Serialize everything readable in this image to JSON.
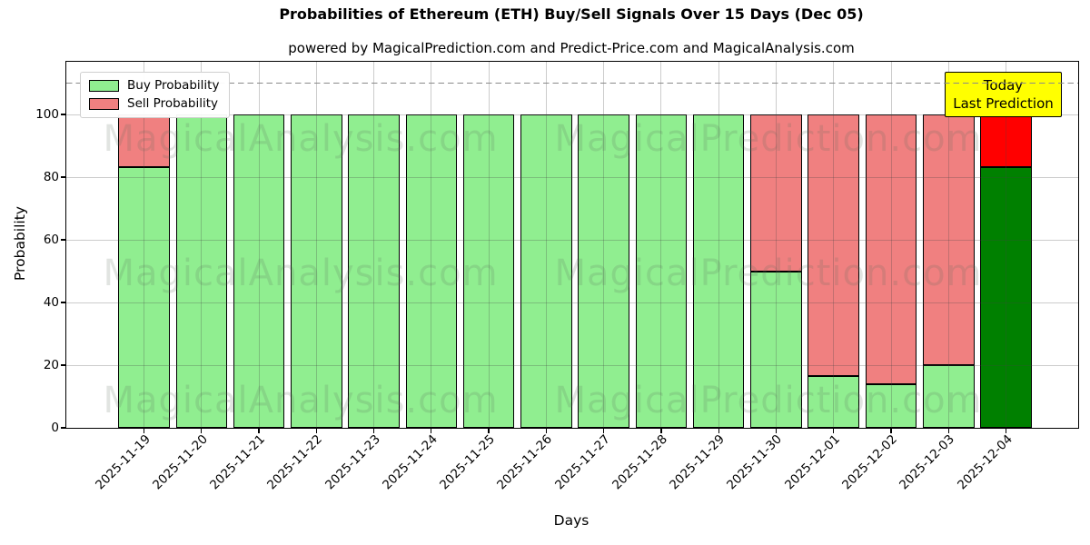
{
  "chart_data": {
    "type": "bar",
    "stacked": true,
    "title": "Probabilities of Ethereum (ETH) Buy/Sell Signals Over 15 Days (Dec 05)",
    "subtitle": "powered by MagicalPrediction.com and Predict-Price.com and MagicalAnalysis.com",
    "xlabel": "Days",
    "ylabel": "Probability",
    "categories": [
      "2025-11-19",
      "2025-11-20",
      "2025-11-21",
      "2025-11-22",
      "2025-11-23",
      "2025-11-24",
      "2025-11-25",
      "2025-11-26",
      "2025-11-27",
      "2025-11-28",
      "2025-11-29",
      "2025-11-30",
      "2025-12-01",
      "2025-12-02",
      "2025-12-03",
      "2025-12-04"
    ],
    "series": [
      {
        "name": "Buy Probability",
        "color": "#90EE90",
        "today_color": "#008000",
        "values": [
          83.33,
          100,
          100,
          100,
          100,
          100,
          100,
          100,
          100,
          100,
          100,
          50,
          16.67,
          14,
          20,
          83.33
        ]
      },
      {
        "name": "Sell Probability",
        "color": "#F08080",
        "today_color": "#FF0000",
        "values": [
          16.67,
          0,
          0,
          0,
          0,
          0,
          0,
          0,
          0,
          0,
          0,
          50,
          83.33,
          86,
          80,
          16.67
        ]
      }
    ],
    "today_index": 15,
    "yticks": [
      0,
      20,
      40,
      60,
      80,
      100
    ],
    "ylim": [
      0,
      116.8
    ],
    "dashed_line_y": 110,
    "grid": true,
    "legend_position": "upper left",
    "annotation": {
      "lines": [
        "Today",
        "Last Prediction"
      ],
      "bg_color": "#FFFF00"
    },
    "watermarks": {
      "left_text": "MagicalAnalysis.com",
      "right_text": "MagicalPrediction.com",
      "rows": 3
    },
    "colors": {
      "bar_edge": "#000000",
      "grid": "#b0b0b0",
      "dashed_line": "#8a8a8a",
      "background": "#FFFFFF"
    }
  }
}
